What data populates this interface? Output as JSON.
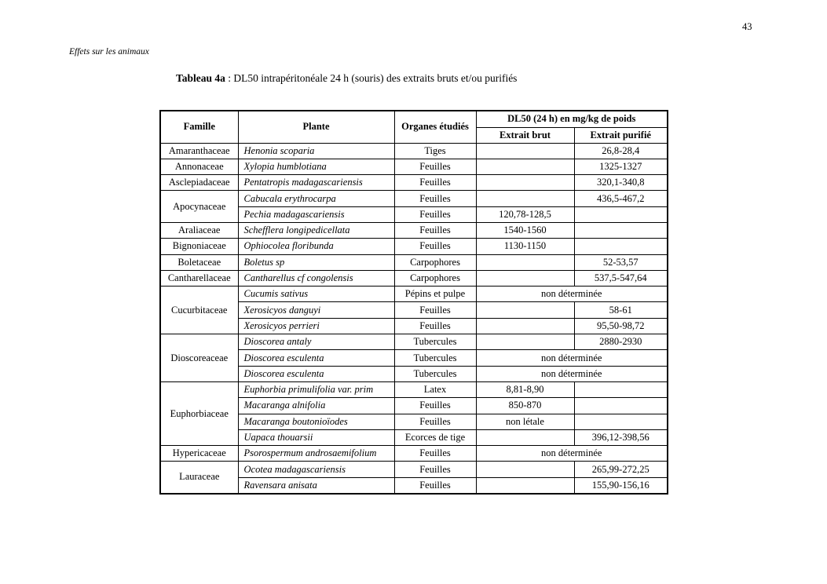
{
  "page": {
    "page_number": "43",
    "running_header": "Effets sur les animaux",
    "title": {
      "bold": "Tableau 4a",
      "rest": " : DL50 intrapéritonéale 24 h (souris) des extraits bruts et/ou purifiés"
    }
  },
  "table": {
    "headers": {
      "famille": "Famille",
      "plante": "Plante",
      "organes": "Organes étudiés",
      "dl50_group": "DL50 (24 h) en mg/kg de poids",
      "extrait_brut": "Extrait brut",
      "extrait_purifie": "Extrait purifié"
    },
    "rows": [
      {
        "famille": "Amaranthaceae",
        "rowspan": 1,
        "plante": "Henonia scoparia",
        "organes": "Tiges",
        "brut": "",
        "purifie": "26,8-28,4"
      },
      {
        "famille": "Annonaceae",
        "rowspan": 1,
        "plante": "Xylopia humblotiana",
        "organes": "Feuilles",
        "brut": "",
        "purifie": "1325-1327"
      },
      {
        "famille": "Asclepiadaceae",
        "rowspan": 1,
        "plante": "Pentatropis madagascariensis",
        "organes": "Feuilles",
        "brut": "",
        "purifie": "320,1-340,8"
      },
      {
        "famille": "Apocynaceae",
        "rowspan": 2,
        "plante": "Cabucala erythrocarpa",
        "organes": "Feuilles",
        "brut": "",
        "purifie": "436,5-467,2"
      },
      {
        "famille": null,
        "plante": "Pechia madagascariensis",
        "organes": "Feuilles",
        "brut": "120,78-128,5",
        "purifie": ""
      },
      {
        "famille": "Araliaceae",
        "rowspan": 1,
        "plante": "Schefflera longipedicellata",
        "organes": "Feuilles",
        "brut": "1540-1560",
        "purifie": ""
      },
      {
        "famille": "Bignoniaceae",
        "rowspan": 1,
        "plante": "Ophiocolea floribunda",
        "organes": "Feuilles",
        "brut": "1130-1150",
        "purifie": ""
      },
      {
        "famille": "Boletaceae",
        "rowspan": 1,
        "plante": "Boletus sp",
        "organes": "Carpophores",
        "brut": "",
        "purifie": "52-53,57"
      },
      {
        "famille": "Cantharellaceae",
        "rowspan": 1,
        "plante": "Cantharellus cf congolensis",
        "organes": "Carpophores",
        "brut": "",
        "purifie": "537,5-547,64"
      },
      {
        "famille": "Cucurbitaceae",
        "rowspan": 3,
        "plante": "Cucumis sativus",
        "organes": "Pépins et pulpe",
        "merged": "non déterminée"
      },
      {
        "famille": null,
        "plante": "Xerosicyos danguyi",
        "organes": "Feuilles",
        "brut": "",
        "purifie": "58-61"
      },
      {
        "famille": null,
        "plante": "Xerosicyos perrieri",
        "organes": "Feuilles",
        "brut": "",
        "purifie": "95,50-98,72"
      },
      {
        "famille": "Dioscoreaceae",
        "rowspan": 3,
        "plante": "Dioscorea antaly",
        "organes": "Tubercules",
        "brut": "",
        "purifie": "2880-2930"
      },
      {
        "famille": null,
        "plante": "Dioscorea esculenta",
        "organes": "Tubercules",
        "merged": "non déterminée"
      },
      {
        "famille": null,
        "plante": "Dioscorea esculenta",
        "organes": "Tubercules",
        "merged": "non déterminée"
      },
      {
        "famille": "Euphorbiaceae",
        "rowspan": 4,
        "plante": "Euphorbia primulifolia var. prim",
        "organes": "Latex",
        "brut": "8,81-8,90",
        "purifie": ""
      },
      {
        "famille": null,
        "plante": "Macaranga alnifolia",
        "organes": "Feuilles",
        "brut": "850-870",
        "purifie": ""
      },
      {
        "famille": null,
        "plante": "Macaranga boutonioïodes",
        "organes": "Feuilles",
        "brut": "non létale",
        "purifie": ""
      },
      {
        "famille": null,
        "plante": "Uapaca thouarsii",
        "organes": "Ecorces de tige",
        "brut": "",
        "purifie": "396,12-398,56"
      },
      {
        "famille": "Hypericaceae",
        "rowspan": 1,
        "plante": "Psorospermum androsaemifolium",
        "organes": "Feuilles",
        "merged": "non déterminée"
      },
      {
        "famille": "Lauraceae",
        "rowspan": 2,
        "plante": "Ocotea madagascariensis",
        "organes": "Feuilles",
        "brut": "",
        "purifie": "265,99-272,25"
      },
      {
        "famille": null,
        "plante": "Ravensara anisata",
        "organes": "Feuilles",
        "brut": "",
        "purifie": "155,90-156,16"
      }
    ]
  }
}
